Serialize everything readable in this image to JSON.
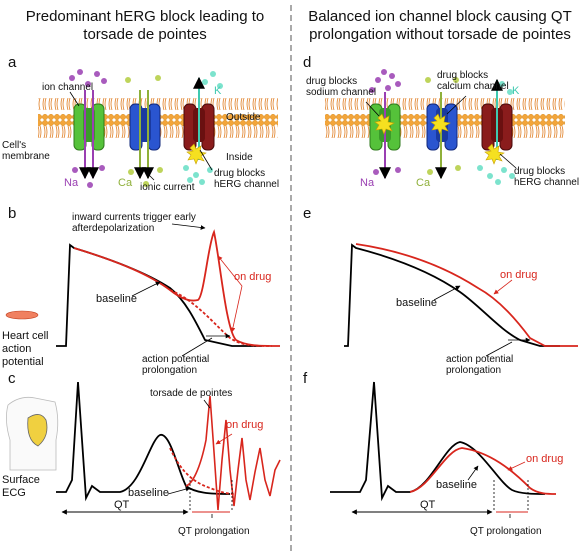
{
  "left": {
    "title": "Predominant hERG block leading to torsade de pointes",
    "panels": [
      "a",
      "b",
      "c"
    ],
    "a": {
      "ion_channel": "ion channel",
      "outside": "Outside",
      "inside": "Inside",
      "membrane": "Cell's membrane",
      "na": "Na",
      "ca": "Ca",
      "k": "K",
      "ionic_current": "ionic current",
      "drug_blocks_herg": "drug blocks hERG channel"
    },
    "b": {
      "inward": "inward currents trigger early afterdepolarization",
      "on_drug": "on drug",
      "baseline": "baseline",
      "heart_cell": "Heart cell action potential",
      "ap_prolong": "action potential prolongation"
    },
    "c": {
      "tdp": "torsade de pointes",
      "on_drug": "on drug",
      "baseline": "baseline",
      "surface_ecg": "Surface ECG",
      "qt": "QT",
      "qt_prolong": "QT prolongation"
    }
  },
  "right": {
    "title": "Balanced ion channel block causing QT prolongation without torsade de pointes",
    "panels": [
      "d",
      "e",
      "f"
    ],
    "d": {
      "drug_blocks_sodium": "drug blocks sodium channel",
      "drug_blocks_calcium": "drug blocks calcium channel",
      "drug_blocks_herg": "drug blocks hERG channel",
      "na": "Na",
      "ca": "Ca",
      "k": "K"
    },
    "e": {
      "on_drug": "on drug",
      "baseline": "baseline",
      "ap_prolong": "action potential prolongation"
    },
    "f": {
      "on_drug": "on drug",
      "baseline": "baseline",
      "qt": "QT",
      "qt_prolong": "QT prolongation"
    }
  },
  "colors": {
    "drug": "#d8261d",
    "baseline": "#000000",
    "na": "#9a3fb2",
    "ca": "#8fb03a",
    "k": "#40c9b0",
    "membrane": "#f0a030"
  }
}
